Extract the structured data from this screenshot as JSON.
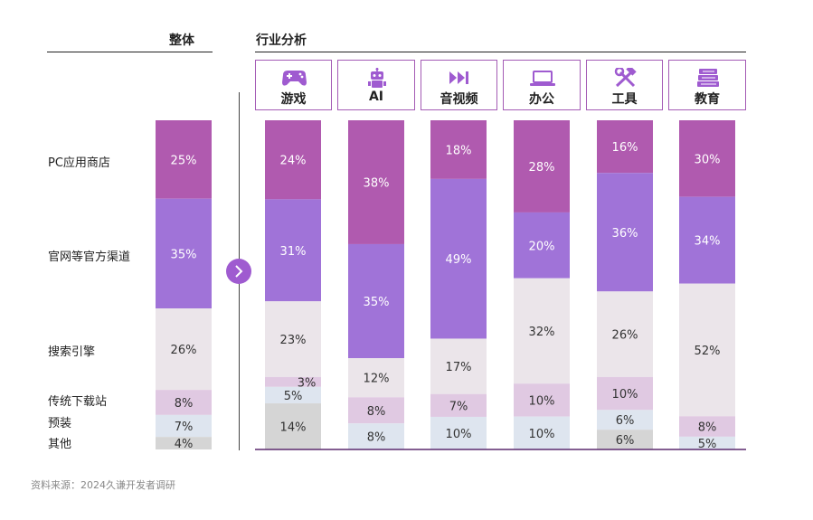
{
  "headers": {
    "overall": "整体",
    "industry": "行业分析"
  },
  "row_labels": [
    "PC应用商店",
    "官网等官方渠道",
    "搜索引擎",
    "传统下载站",
    "预装",
    "其他"
  ],
  "categories": [
    {
      "name": "游戏",
      "icon": "gamepad-icon"
    },
    {
      "name": "AI",
      "icon": "robot-icon"
    },
    {
      "name": "音视频",
      "icon": "media-forward-icon"
    },
    {
      "name": "办公",
      "icon": "laptop-icon"
    },
    {
      "name": "工具",
      "icon": "hammer-wrench-icon"
    },
    {
      "name": "教育",
      "icon": "books-icon"
    }
  ],
  "source": "资料来源：2024久谦开发者调研",
  "colors": [
    "#b05aaf",
    "#a073d8",
    "#ebe5ea",
    "#e0c9e2",
    "#dee5ef",
    "#d5d5d5"
  ],
  "chart_data": {
    "type": "bar",
    "stacked": true,
    "normalized": true,
    "categories": [
      "整体",
      "游戏",
      "AI",
      "音视频",
      "办公",
      "工具",
      "教育"
    ],
    "series": [
      {
        "name": "PC应用商店",
        "values": [
          25,
          24,
          38,
          18,
          28,
          16,
          30
        ]
      },
      {
        "name": "官网等官方渠道",
        "values": [
          35,
          31,
          35,
          49,
          20,
          36,
          34
        ]
      },
      {
        "name": "搜索引擎",
        "values": [
          26,
          23,
          12,
          17,
          32,
          26,
          52
        ]
      },
      {
        "name": "传统下载站",
        "values": [
          8,
          3,
          8,
          7,
          10,
          10,
          8
        ]
      },
      {
        "name": "预装",
        "values": [
          7,
          5,
          8,
          10,
          10,
          6,
          5
        ]
      },
      {
        "name": "其他",
        "values": [
          4,
          14,
          null,
          null,
          null,
          6,
          null
        ]
      }
    ],
    "value_suffix": "%"
  }
}
